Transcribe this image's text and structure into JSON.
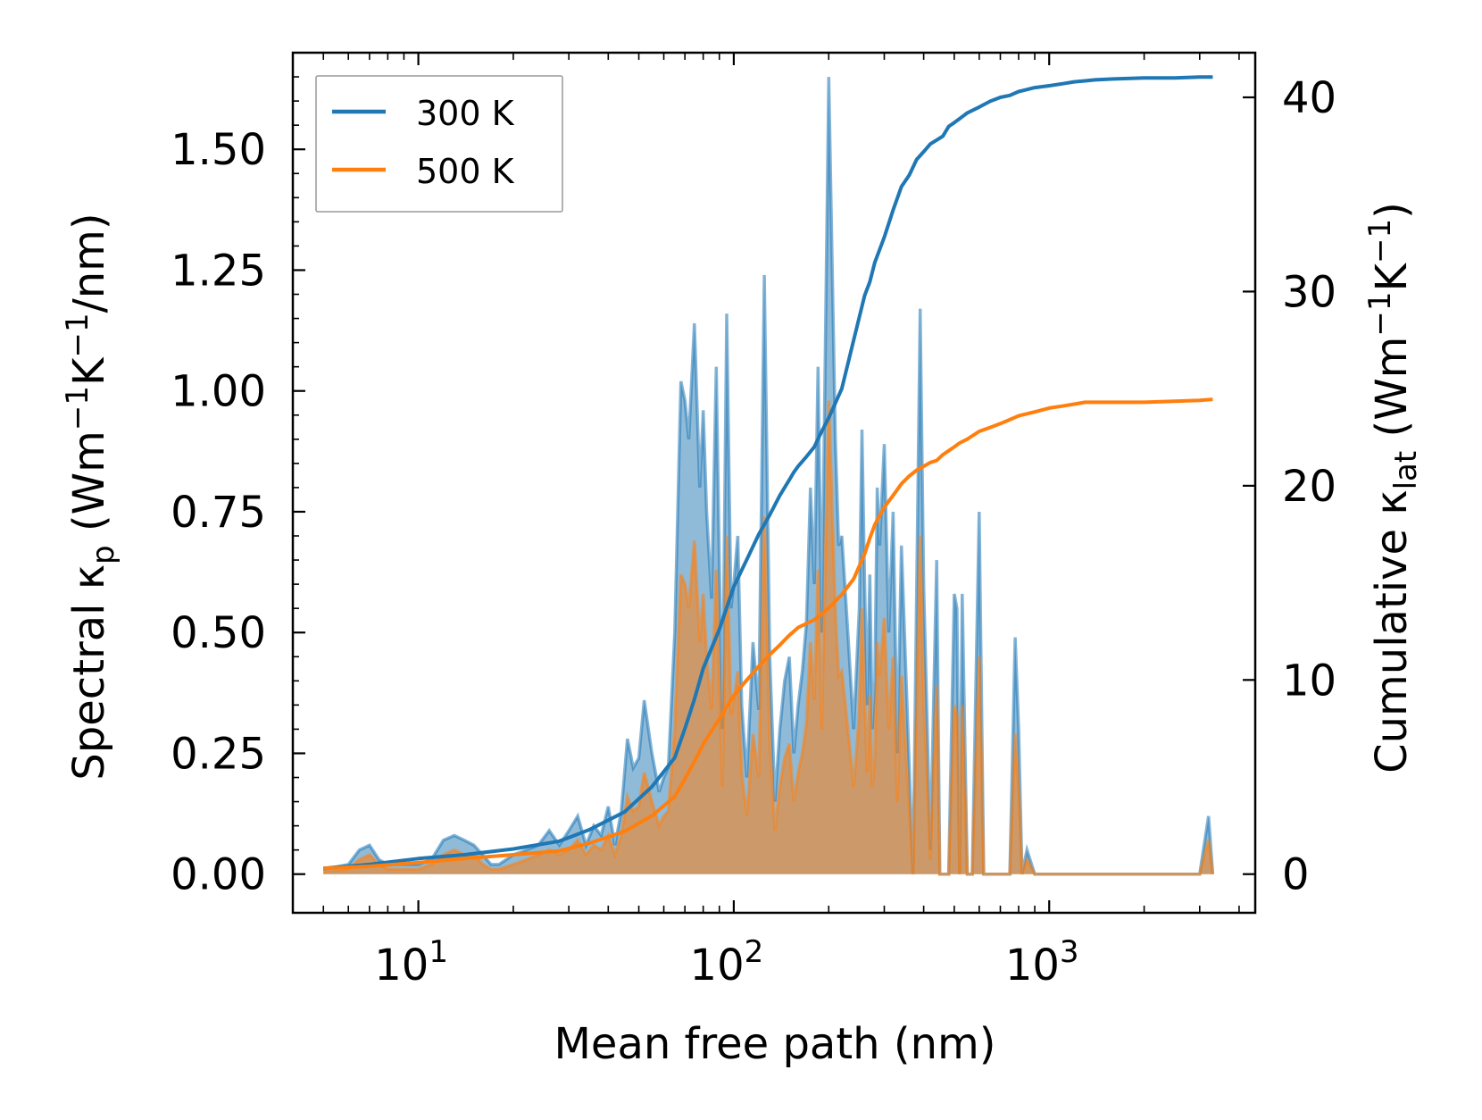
{
  "chart_data": {
    "type": "line",
    "title": "",
    "xlabel": "Mean free path (nm)",
    "ylabel_left": {
      "main": "Spectral κ",
      "sub": "p",
      "unit_open": " (Wm",
      "sup1": "−1",
      "mid": "K",
      "sup2": "−1",
      "unit_close": "/nm)"
    },
    "ylabel_right": {
      "main": "Cumulative κ",
      "sub": "lat",
      "unit_open": " (Wm",
      "sup1": "−1",
      "mid": "K",
      "sup2": "−1",
      "unit_close": ")"
    },
    "x_scale": "log",
    "xlim": [
      4,
      4500
    ],
    "ylim_left": [
      -0.08,
      1.7
    ],
    "ylim_right": [
      -1.99,
      42.3
    ],
    "x_ticks": [
      {
        "value": 10,
        "base": "10",
        "exp": "1"
      },
      {
        "value": 100,
        "base": "10",
        "exp": "2"
      },
      {
        "value": 1000,
        "base": "10",
        "exp": "3"
      }
    ],
    "y_ticks_left": [
      {
        "value": 0.0,
        "label": "0.00"
      },
      {
        "value": 0.25,
        "label": "0.25"
      },
      {
        "value": 0.5,
        "label": "0.50"
      },
      {
        "value": 0.75,
        "label": "0.75"
      },
      {
        "value": 1.0,
        "label": "1.00"
      },
      {
        "value": 1.25,
        "label": "1.25"
      },
      {
        "value": 1.5,
        "label": "1.50"
      }
    ],
    "y_ticks_right": [
      {
        "value": 0,
        "label": "0"
      },
      {
        "value": 10,
        "label": "10"
      },
      {
        "value": 20,
        "label": "20"
      },
      {
        "value": 30,
        "label": "30"
      },
      {
        "value": 40,
        "label": "40"
      }
    ],
    "legend": {
      "location": "upper-left",
      "entries": [
        "300 K",
        "500 K"
      ]
    },
    "series": [
      {
        "name": "300 K",
        "color": "#1f77b4",
        "fill_color": "#1f77b4",
        "spectral": {
          "x": [
            5,
            5.5,
            6,
            6.5,
            7,
            7.5,
            8,
            9,
            10,
            11,
            12,
            13,
            14,
            15,
            16,
            17,
            18,
            20,
            22,
            24,
            26,
            28,
            30,
            32,
            34,
            36,
            38,
            40,
            42,
            44,
            46,
            48,
            50,
            52,
            55,
            58,
            60,
            62,
            65,
            68,
            70,
            72,
            75,
            78,
            80,
            82,
            85,
            88,
            90,
            92,
            95,
            98,
            100,
            103,
            106,
            110,
            115,
            120,
            125,
            130,
            135,
            140,
            145,
            150,
            155,
            160,
            165,
            170,
            175,
            180,
            185,
            190,
            200,
            210,
            215,
            220,
            230,
            240,
            250,
            255,
            260,
            265,
            270,
            275,
            280,
            285,
            290,
            300,
            310,
            320,
            330,
            340,
            350,
            360,
            370,
            380,
            390,
            400,
            420,
            440,
            450,
            460,
            480,
            500,
            510,
            520,
            530,
            550,
            570,
            600,
            620,
            650,
            680,
            700,
            720,
            750,
            780,
            800,
            820,
            850,
            900,
            950,
            1000,
            1020,
            1050,
            1100,
            1200,
            1300,
            1350,
            1400,
            1500,
            1600,
            1700,
            1800,
            2000,
            2500,
            3000,
            3200,
            3300
          ],
          "values": [
            0.01,
            0.015,
            0.02,
            0.05,
            0.06,
            0.03,
            0.02,
            0.02,
            0.02,
            0.03,
            0.07,
            0.08,
            0.07,
            0.06,
            0.04,
            0.02,
            0.02,
            0.04,
            0.05,
            0.06,
            0.09,
            0.06,
            0.09,
            0.12,
            0.06,
            0.1,
            0.08,
            0.14,
            0.06,
            0.13,
            0.28,
            0.22,
            0.24,
            0.36,
            0.25,
            0.17,
            0.2,
            0.22,
            0.5,
            1.02,
            0.98,
            0.9,
            1.14,
            0.8,
            0.96,
            0.75,
            0.57,
            1.05,
            0.65,
            0.3,
            1.16,
            0.55,
            0.6,
            0.7,
            0.35,
            0.2,
            0.48,
            0.34,
            1.24,
            0.45,
            0.15,
            0.3,
            0.4,
            0.45,
            0.25,
            0.35,
            0.42,
            0.52,
            0.8,
            0.6,
            1.05,
            0.5,
            1.65,
            0.9,
            0.68,
            0.7,
            0.5,
            0.3,
            0.55,
            0.92,
            0.6,
            0.35,
            0.62,
            0.3,
            0.4,
            0.8,
            0.68,
            0.89,
            0.5,
            0.75,
            0.25,
            0.68,
            0.45,
            0.22,
            0.0,
            0.58,
            1.17,
            0.6,
            0.05,
            0.65,
            0.0,
            0.0,
            0.0,
            0.58,
            0.55,
            0.0,
            0.58,
            0.0,
            0.0,
            0.75,
            0.0,
            0.0,
            0.0,
            0.0,
            0.0,
            0.0,
            0.49,
            0.3,
            0.0,
            0.05,
            0.0,
            0.0,
            0.0,
            0.0,
            0.0,
            0.0,
            0.0,
            0.0,
            0.0,
            0.0,
            0.0,
            0.0,
            0.0,
            0.0,
            0.0,
            0.0,
            0.0,
            0.12,
            0.0
          ]
        },
        "cumulative": {
          "x": [
            5,
            7,
            10,
            14,
            20,
            28,
            35,
            45,
            55,
            65,
            70,
            75,
            80,
            90,
            100,
            110,
            120,
            130,
            140,
            150,
            155,
            160,
            170,
            180,
            190,
            200,
            220,
            240,
            260,
            270,
            280,
            300,
            320,
            340,
            360,
            380,
            400,
            420,
            440,
            460,
            480,
            500,
            520,
            550,
            600,
            650,
            700,
            750,
            800,
            900,
            1000,
            1100,
            1200,
            1300,
            1400,
            1600,
            2000,
            2500,
            3000,
            3300
          ],
          "values": [
            0.3,
            0.5,
            0.8,
            1.0,
            1.3,
            1.7,
            2.3,
            3.2,
            4.5,
            6.0,
            7.5,
            9.0,
            10.6,
            12.6,
            14.8,
            16.2,
            17.5,
            18.5,
            19.5,
            20.3,
            20.7,
            21.0,
            21.5,
            22.0,
            22.8,
            23.5,
            25.0,
            27.5,
            29.8,
            30.5,
            31.5,
            32.8,
            34.2,
            35.4,
            36.0,
            36.8,
            37.2,
            37.6,
            37.8,
            38.0,
            38.5,
            38.7,
            38.9,
            39.2,
            39.5,
            39.8,
            40.0,
            40.1,
            40.3,
            40.5,
            40.6,
            40.7,
            40.8,
            40.85,
            40.9,
            40.95,
            41.0,
            41.0,
            41.05,
            41.05
          ]
        }
      },
      {
        "name": "500 K",
        "color": "#ff7f0e",
        "fill_color": "#ff7f0e",
        "spectral": {
          "x": [
            5,
            5.5,
            6,
            6.5,
            7,
            7.5,
            8,
            9,
            10,
            11,
            12,
            13,
            14,
            15,
            16,
            17,
            18,
            20,
            22,
            24,
            26,
            28,
            30,
            32,
            34,
            36,
            38,
            40,
            42,
            44,
            46,
            48,
            50,
            52,
            55,
            58,
            60,
            62,
            65,
            68,
            70,
            72,
            75,
            78,
            80,
            82,
            85,
            88,
            90,
            92,
            95,
            98,
            100,
            103,
            106,
            110,
            115,
            120,
            125,
            130,
            135,
            140,
            145,
            150,
            155,
            160,
            165,
            170,
            175,
            180,
            185,
            190,
            200,
            210,
            215,
            220,
            230,
            240,
            250,
            255,
            260,
            265,
            270,
            275,
            280,
            285,
            290,
            300,
            310,
            320,
            330,
            340,
            350,
            360,
            370,
            380,
            390,
            400,
            420,
            440,
            450,
            460,
            480,
            500,
            510,
            520,
            530,
            550,
            570,
            600,
            620,
            650,
            680,
            700,
            720,
            750,
            780,
            800,
            820,
            850,
            900,
            950,
            1000,
            1020,
            1050,
            1100,
            1200,
            1300,
            1350,
            1400,
            1500,
            1600,
            1700,
            1800,
            2000,
            2500,
            3000,
            3200,
            3300
          ],
          "values": [
            0.005,
            0.008,
            0.01,
            0.03,
            0.04,
            0.02,
            0.01,
            0.01,
            0.01,
            0.02,
            0.04,
            0.05,
            0.04,
            0.04,
            0.02,
            0.01,
            0.01,
            0.02,
            0.03,
            0.04,
            0.05,
            0.04,
            0.05,
            0.07,
            0.04,
            0.06,
            0.05,
            0.08,
            0.04,
            0.08,
            0.16,
            0.13,
            0.14,
            0.21,
            0.15,
            0.1,
            0.12,
            0.13,
            0.3,
            0.62,
            0.6,
            0.55,
            0.69,
            0.48,
            0.58,
            0.45,
            0.34,
            0.63,
            0.39,
            0.18,
            0.7,
            0.33,
            0.36,
            0.42,
            0.21,
            0.12,
            0.29,
            0.2,
            0.74,
            0.27,
            0.09,
            0.18,
            0.24,
            0.27,
            0.15,
            0.21,
            0.25,
            0.31,
            0.48,
            0.36,
            0.63,
            0.3,
            0.98,
            0.54,
            0.41,
            0.42,
            0.3,
            0.18,
            0.33,
            0.55,
            0.36,
            0.21,
            0.37,
            0.18,
            0.24,
            0.48,
            0.41,
            0.53,
            0.3,
            0.45,
            0.15,
            0.41,
            0.27,
            0.13,
            0.0,
            0.35,
            0.7,
            0.36,
            0.03,
            0.39,
            0.0,
            0.0,
            0.0,
            0.35,
            0.33,
            0.0,
            0.35,
            0.0,
            0.0,
            0.45,
            0.0,
            0.0,
            0.0,
            0.0,
            0.0,
            0.0,
            0.29,
            0.18,
            0.0,
            0.03,
            0.0,
            0.0,
            0.0,
            0.0,
            0.0,
            0.0,
            0.0,
            0.0,
            0.0,
            0.0,
            0.0,
            0.0,
            0.0,
            0.0,
            0.0,
            0.0,
            0.0,
            0.07,
            0.0
          ]
        },
        "cumulative": {
          "x": [
            5,
            7,
            10,
            14,
            20,
            28,
            35,
            45,
            55,
            65,
            70,
            75,
            80,
            90,
            100,
            110,
            120,
            130,
            140,
            150,
            155,
            160,
            170,
            180,
            190,
            200,
            220,
            240,
            260,
            270,
            280,
            300,
            320,
            340,
            360,
            380,
            400,
            420,
            440,
            460,
            480,
            500,
            520,
            550,
            600,
            650,
            700,
            750,
            800,
            900,
            1000,
            1100,
            1200,
            1300,
            1400,
            1600,
            2000,
            2500,
            3000,
            3300
          ],
          "values": [
            0.3,
            0.4,
            0.6,
            0.8,
            1.0,
            1.2,
            1.6,
            2.2,
            3.0,
            4.0,
            4.9,
            5.8,
            6.7,
            8.0,
            9.2,
            10.0,
            10.7,
            11.3,
            11.8,
            12.3,
            12.5,
            12.7,
            12.9,
            13.1,
            13.4,
            13.7,
            14.4,
            15.2,
            16.5,
            17.3,
            18.0,
            18.9,
            19.5,
            20.1,
            20.5,
            20.8,
            21.0,
            21.2,
            21.3,
            21.6,
            21.8,
            22.0,
            22.2,
            22.4,
            22.8,
            23.0,
            23.2,
            23.4,
            23.6,
            23.8,
            24.0,
            24.1,
            24.2,
            24.3,
            24.3,
            24.3,
            24.3,
            24.35,
            24.4,
            24.45
          ]
        }
      }
    ]
  }
}
